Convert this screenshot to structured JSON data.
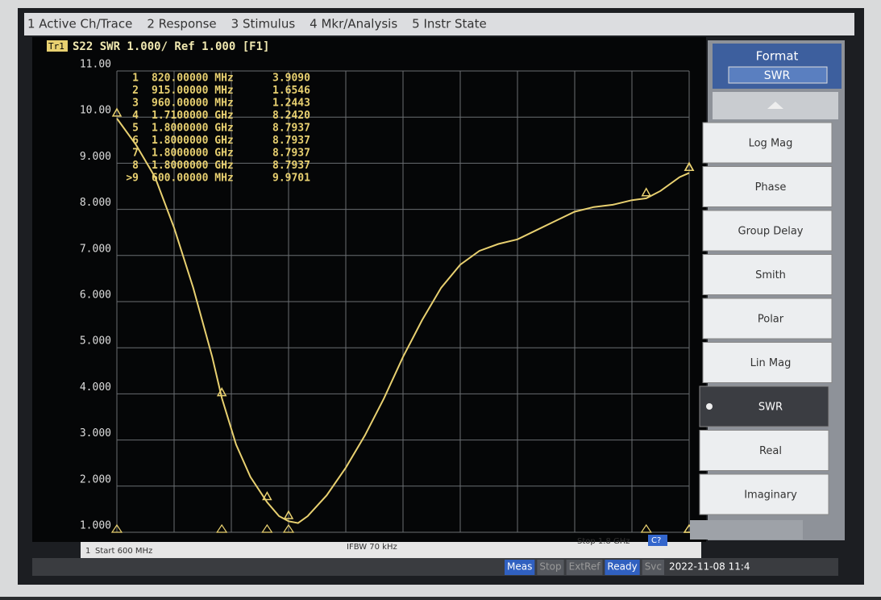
{
  "menu": [
    "1 Active Ch/Trace",
    "2 Response",
    "3 Stimulus",
    "4 Mkr/Analysis",
    "5 Instr State"
  ],
  "chart_data": {
    "type": "line",
    "trace_badge": "Tr1",
    "title": "S22 SWR 1.000/ Ref 1.000 [F1]",
    "xlim": [
      600,
      1800
    ],
    "ylim": [
      1,
      11
    ],
    "yticks": [
      {
        "value": 1,
        "label": "1.000"
      },
      {
        "value": 2,
        "label": "2.000"
      },
      {
        "value": 3,
        "label": "3.000"
      },
      {
        "value": 4,
        "label": "4.000"
      },
      {
        "value": 5,
        "label": "5.000"
      },
      {
        "value": 6,
        "label": "6.000"
      },
      {
        "value": 7,
        "label": "7.000"
      },
      {
        "value": 8,
        "label": "8.000"
      },
      {
        "value": 9,
        "label": "9.000"
      },
      {
        "value": 10,
        "label": "10.00"
      },
      {
        "value": 11,
        "label": "11.00"
      }
    ],
    "grid": true,
    "series": [
      {
        "color": "#e8d070",
        "x": [
          600,
          640,
          680,
          720,
          760,
          800,
          820,
          850,
          880,
          915,
          940,
          960,
          980,
          1000,
          1040,
          1080,
          1120,
          1160,
          1200,
          1240,
          1280,
          1320,
          1360,
          1400,
          1440,
          1480,
          1520,
          1560,
          1600,
          1640,
          1680,
          1710,
          1740,
          1780,
          1800
        ],
        "values": [
          9.97,
          9.4,
          8.7,
          7.6,
          6.3,
          4.8,
          3.91,
          2.9,
          2.2,
          1.65,
          1.35,
          1.24,
          1.2,
          1.35,
          1.8,
          2.4,
          3.1,
          3.9,
          4.8,
          5.6,
          6.3,
          6.8,
          7.1,
          7.25,
          7.35,
          7.55,
          7.75,
          7.95,
          8.05,
          8.1,
          8.2,
          8.24,
          8.4,
          8.7,
          8.79
        ]
      }
    ],
    "markers": {
      "names": [
        "1",
        "2",
        "3",
        "4",
        "5",
        "6",
        "7",
        "8",
        ">9"
      ],
      "x": [
        820,
        915,
        960,
        1710,
        1800,
        1800,
        1800,
        1800,
        600
      ],
      "x_labels": [
        "820.00000 MHz",
        "915.00000 MHz",
        "960.00000 MHz",
        "1.7100000 GHz",
        "1.8000000 GHz",
        "1.8000000 GHz",
        "1.8000000 GHz",
        "1.8000000 GHz",
        "600.00000 MHz"
      ],
      "values": [
        3.909,
        1.6546,
        1.2443,
        8.242,
        8.7937,
        8.7937,
        8.7937,
        8.7937,
        9.9701
      ],
      "value_labels": [
        "3.9090",
        "1.6546",
        "1.2443",
        "8.2420",
        "8.7937",
        "8.7937",
        "8.7937",
        "8.7937",
        "9.9701"
      ]
    },
    "footer": {
      "channel": "1",
      "start": "Start 600 MHz",
      "ifbw": "IFBW 70 kHz",
      "stop": "Stop 1.8 GHz",
      "cal": "C?"
    }
  },
  "softkeys": {
    "title": "Format",
    "current": "SWR",
    "keys": [
      "Log Mag",
      "Phase",
      "Group Delay",
      "Smith",
      "Polar",
      "Lin Mag",
      "SWR",
      "Real",
      "Imaginary"
    ]
  },
  "status": [
    "Meas",
    "Stop",
    "ExtRef",
    "Ready",
    "Svc",
    "2022-11-08 11:4"
  ]
}
